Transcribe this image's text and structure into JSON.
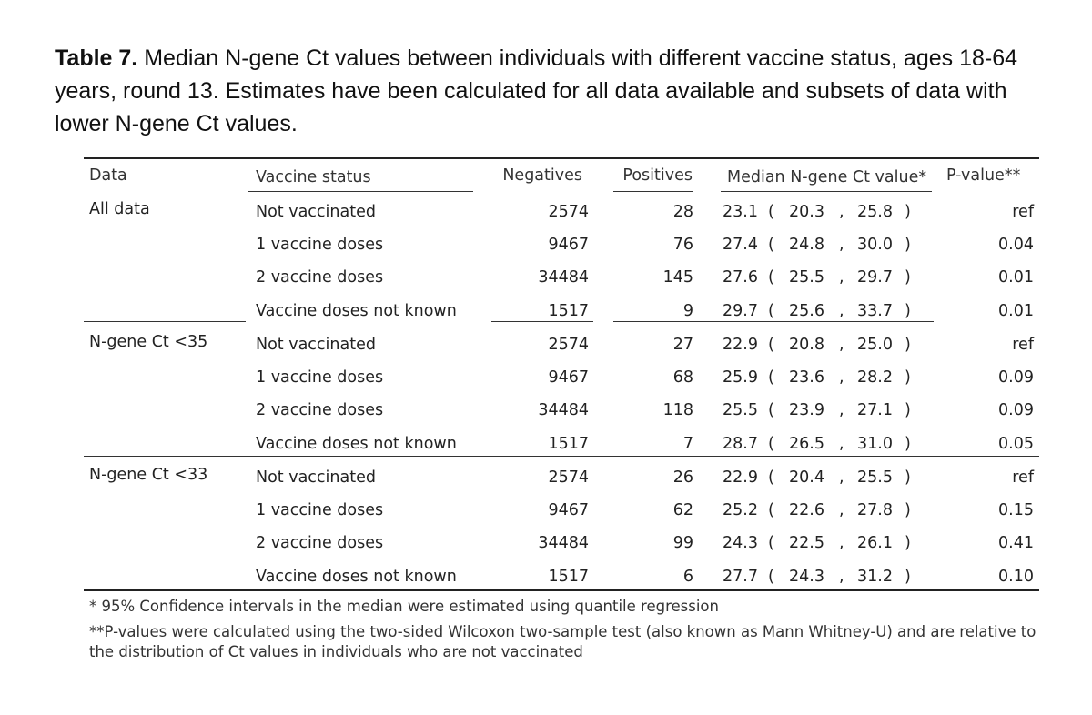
{
  "caption": {
    "label": "Table 7.",
    "text": " Median N-gene Ct values between individuals with different vaccine status, ages 18-64 years, round 13. Estimates have been calculated for all data available and subsets of data with lower N-gene Ct values."
  },
  "table": {
    "headers": {
      "data": "Data",
      "vaccine_status": "Vaccine status",
      "negatives": "Negatives",
      "positives": "Positives",
      "median": "Median N-gene Ct value*",
      "pvalue": "P-value**"
    },
    "groups": [
      {
        "name": "All data",
        "rows": [
          {
            "status": "Not vaccinated",
            "negatives": "2574",
            "positives": "28",
            "median": "23.1",
            "lo": "20.3",
            "hi": "25.8",
            "p": "ref"
          },
          {
            "status": "1 vaccine doses",
            "negatives": "9467",
            "positives": "76",
            "median": "27.4",
            "lo": "24.8",
            "hi": "30.0",
            "p": "0.04"
          },
          {
            "status": "2 vaccine doses",
            "negatives": "34484",
            "positives": "145",
            "median": "27.6",
            "lo": "25.5",
            "hi": "29.7",
            "p": "0.01"
          },
          {
            "status": "Vaccine doses not known",
            "negatives": "1517",
            "positives": "9",
            "median": "29.7",
            "lo": "25.6",
            "hi": "33.7",
            "p": "0.01"
          }
        ]
      },
      {
        "name": "N-gene Ct <35",
        "rows": [
          {
            "status": "Not vaccinated",
            "negatives": "2574",
            "positives": "27",
            "median": "22.9",
            "lo": "20.8",
            "hi": "25.0",
            "p": "ref"
          },
          {
            "status": "1 vaccine doses",
            "negatives": "9467",
            "positives": "68",
            "median": "25.9",
            "lo": "23.6",
            "hi": "28.2",
            "p": "0.09"
          },
          {
            "status": "2 vaccine doses",
            "negatives": "34484",
            "positives": "118",
            "median": "25.5",
            "lo": "23.9",
            "hi": "27.1",
            "p": "0.09"
          },
          {
            "status": "Vaccine doses not known",
            "negatives": "1517",
            "positives": "7",
            "median": "28.7",
            "lo": "26.5",
            "hi": "31.0",
            "p": "0.05"
          }
        ]
      },
      {
        "name": "N-gene Ct <33",
        "rows": [
          {
            "status": "Not vaccinated",
            "negatives": "2574",
            "positives": "26",
            "median": "22.9",
            "lo": "20.4",
            "hi": "25.5",
            "p": "ref"
          },
          {
            "status": "1 vaccine doses",
            "negatives": "9467",
            "positives": "62",
            "median": "25.2",
            "lo": "22.6",
            "hi": "27.8",
            "p": "0.15"
          },
          {
            "status": "2 vaccine doses",
            "negatives": "34484",
            "positives": "99",
            "median": "24.3",
            "lo": "22.5",
            "hi": "26.1",
            "p": "0.41"
          },
          {
            "status": "Vaccine doses not known",
            "negatives": "1517",
            "positives": "6",
            "median": "27.7",
            "lo": "24.3",
            "hi": "31.2",
            "p": "0.10"
          }
        ]
      }
    ]
  },
  "footnotes": {
    "note1": "* 95% Confidence intervals in the median were estimated using quantile regression",
    "note2": "**P-values were calculated using the two-sided Wilcoxon two-sample test (also known as Mann Whitney-U) and are relative to the distribution of Ct values in individuals who are not vaccinated"
  }
}
